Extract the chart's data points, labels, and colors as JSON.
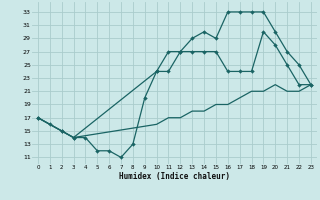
{
  "xlabel": "Humidex (Indice chaleur)",
  "bg_color": "#cce8e8",
  "grid_color": "#aacccc",
  "line_color": "#1a6464",
  "xlim": [
    -0.5,
    23.5
  ],
  "ylim": [
    10.0,
    34.5
  ],
  "yticks": [
    11,
    13,
    15,
    17,
    19,
    21,
    23,
    25,
    27,
    29,
    31,
    33
  ],
  "xticks": [
    0,
    1,
    2,
    3,
    4,
    5,
    6,
    7,
    8,
    9,
    10,
    11,
    12,
    13,
    14,
    15,
    16,
    17,
    18,
    19,
    20,
    21,
    22,
    23
  ],
  "line1_x": [
    0,
    1,
    2,
    3,
    4,
    5,
    6,
    7,
    8,
    9,
    10,
    11,
    12,
    13,
    14,
    15,
    16,
    17,
    18,
    19,
    20,
    21,
    22,
    23
  ],
  "line1_y": [
    17,
    16,
    15,
    14,
    14,
    12,
    12,
    11,
    13,
    20,
    24,
    24,
    27,
    27,
    27,
    27,
    24,
    24,
    24,
    30,
    28,
    25,
    22,
    22
  ],
  "line2_x": [
    0,
    2,
    3,
    10,
    11,
    12,
    13,
    14,
    15,
    16,
    17,
    18,
    19,
    20,
    21,
    22,
    23
  ],
  "line2_y": [
    17,
    15,
    14,
    24,
    27,
    27,
    29,
    30,
    29,
    33,
    33,
    33,
    33,
    30,
    27,
    25,
    22
  ],
  "line3_x": [
    0,
    2,
    3,
    10,
    11,
    12,
    13,
    14,
    15,
    16,
    17,
    18,
    19,
    20,
    21,
    22,
    23
  ],
  "line3_y": [
    17,
    15,
    14,
    16,
    17,
    17,
    18,
    18,
    19,
    19,
    20,
    21,
    21,
    22,
    21,
    21,
    22
  ]
}
